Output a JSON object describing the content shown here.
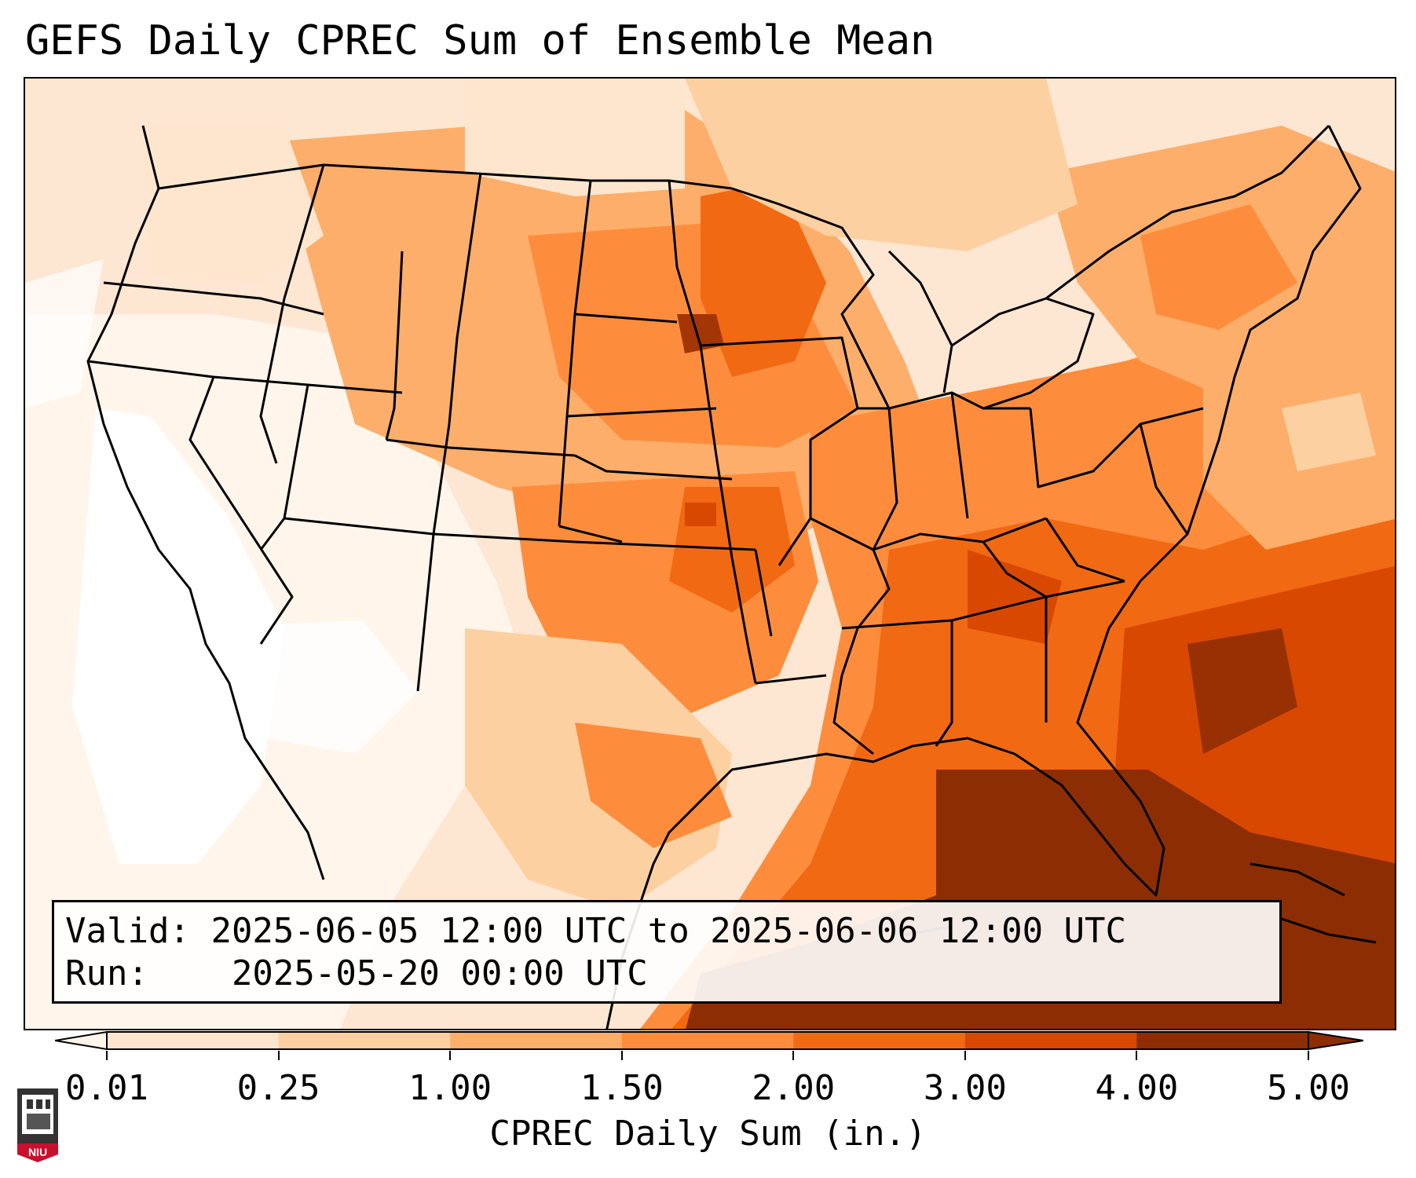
{
  "title": "GEFS Daily CPREC Sum of Ensemble Mean",
  "info": {
    "valid_label": "Valid:",
    "valid_value": "2025-06-05 12:00 UTC to 2025-06-06 12:00 UTC",
    "run_label": "Run:",
    "run_value": "2025-05-20 00:00 UTC"
  },
  "colorbar": {
    "label": "CPREC Daily Sum (in.)",
    "ticks": [
      "0.01",
      "0.25",
      "1.00",
      "1.50",
      "2.00",
      "3.00",
      "4.00",
      "5.00"
    ],
    "colors": [
      "#fff5eb",
      "#fee6ce",
      "#fdd0a2",
      "#fdae6b",
      "#fd8d3c",
      "#f16913",
      "#d94801",
      "#8c2d04"
    ]
  },
  "logo": {
    "text": "NIU",
    "color": "#c8102e"
  }
}
